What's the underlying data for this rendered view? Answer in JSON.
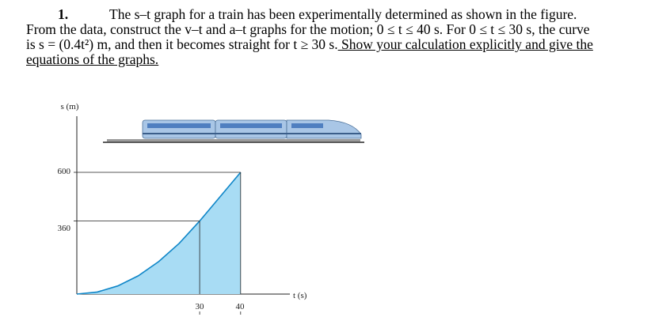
{
  "problem": {
    "number": "1.",
    "line1": "The s–t graph for a train has been experimentally determined as shown in the figure.",
    "line2": "From the data, construct the v–t and a–t graphs for the motion; 0 ≤ t ≤ 40 s. For 0 ≤ t ≤ 30 s, the curve",
    "line3a": "is s = (0.4t²) m, and then it becomes straight for t ≥ 30 s.",
    "line3b": " Show your calculation explicitly and give the",
    "line4": "equations of the graphs."
  },
  "figure": {
    "ylabel": "s (m)",
    "xlabel": "t (s)",
    "yticks": [
      "600",
      "360"
    ],
    "xticks": [
      "30",
      "40"
    ]
  },
  "chart_data": {
    "type": "area",
    "x": [
      0,
      5,
      10,
      15,
      20,
      25,
      30,
      40
    ],
    "y": [
      0,
      10,
      40,
      90,
      160,
      250,
      360,
      600
    ],
    "xticks": [
      30,
      40
    ],
    "yticks": [
      360,
      600
    ],
    "xlabel": "t (s)",
    "ylabel": "s (m)",
    "fill_color": "#a8dcf4",
    "curve_color": "#0f86c8"
  }
}
